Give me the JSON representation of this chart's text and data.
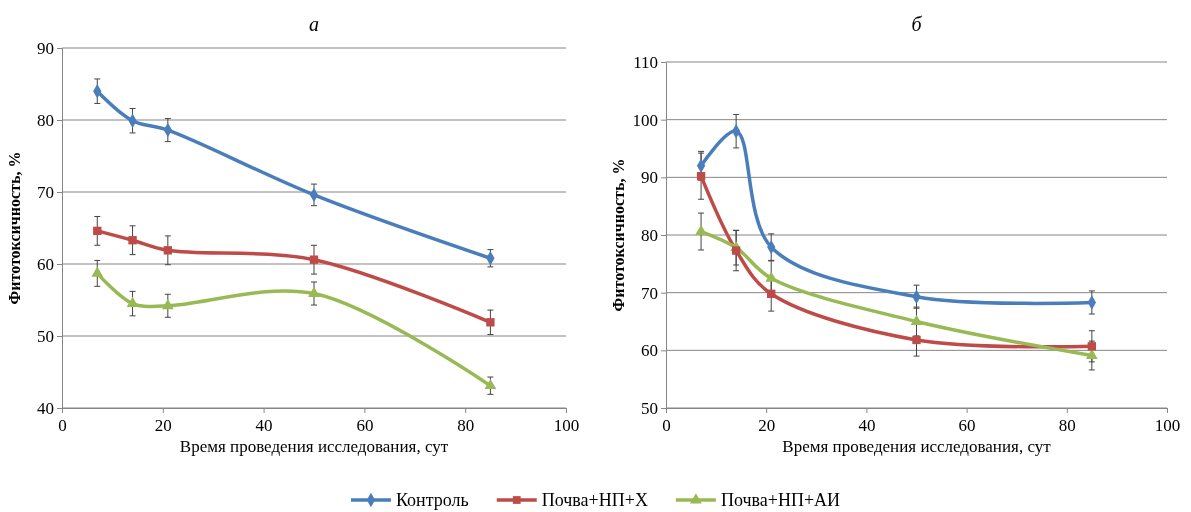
{
  "chart_data": [
    {
      "type": "line",
      "title": "а",
      "xlabel": "Время проведения исследования, сут",
      "ylabel": "Фитотоксичность, %",
      "x": [
        7,
        14,
        21,
        50,
        85
      ],
      "xlim": [
        0,
        100
      ],
      "xticks": [
        0,
        20,
        40,
        60,
        80,
        100
      ],
      "ylim": [
        40,
        90
      ],
      "yticks": [
        40,
        50,
        60,
        70,
        80,
        90
      ],
      "grid": "y",
      "legend": "bottom",
      "series": [
        {
          "name": "Контроль",
          "color": "#4a7ebb",
          "marker": "diamond",
          "values": [
            84,
            79.9,
            78.6,
            69.6,
            60.8
          ],
          "errors": [
            1.7,
            1.7,
            1.6,
            1.5,
            1.2
          ]
        },
        {
          "name": "Почва+НП+Х",
          "color": "#be4b48",
          "marker": "square",
          "values": [
            64.6,
            63.3,
            61.9,
            60.6,
            51.9
          ],
          "errors": [
            2,
            2,
            2,
            2,
            1.7
          ]
        },
        {
          "name": "Почва+НП+АИ",
          "color": "#98b954",
          "marker": "triangle",
          "values": [
            58.7,
            54.5,
            54.2,
            55.9,
            43.1
          ],
          "errors": [
            1.8,
            1.7,
            1.6,
            1.6,
            1.2
          ]
        }
      ]
    },
    {
      "type": "line",
      "title": "б",
      "xlabel": "Время проведения исследования, сут",
      "ylabel": "Фитотоксичность, %",
      "x": [
        7,
        14,
        21,
        50,
        85
      ],
      "xlim": [
        0,
        100
      ],
      "xticks": [
        0,
        20,
        40,
        60,
        80,
        100
      ],
      "ylim": [
        50,
        110
      ],
      "yticks": [
        50,
        60,
        70,
        80,
        90,
        100,
        110
      ],
      "grid": "y",
      "series": [
        {
          "name": "Контроль",
          "color": "#4a7ebb",
          "marker": "diamond",
          "values": [
            92,
            98,
            77.9,
            69.3,
            68.3
          ],
          "errors": [
            2.5,
            2.9,
            2.3,
            2,
            2
          ]
        },
        {
          "name": "Почва+НП+Х",
          "color": "#be4b48",
          "marker": "square",
          "values": [
            90.2,
            77.3,
            69.8,
            61.8,
            60.7
          ],
          "errors": [
            4,
            3.5,
            3,
            2.8,
            2.7
          ]
        },
        {
          "name": "Почва+НП+АИ",
          "color": "#98b954",
          "marker": "triangle",
          "values": [
            80.6,
            77.8,
            72.5,
            65,
            59.1
          ],
          "errors": [
            3.2,
            3,
            3,
            2.5,
            2.5
          ]
        }
      ]
    }
  ]
}
